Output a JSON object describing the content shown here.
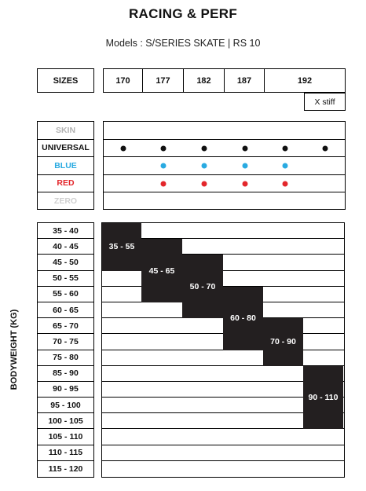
{
  "title": "RACING & PERF",
  "subtitle": "Models : S/SERIES SKATE  |  RS 10",
  "sizes": {
    "label": "SIZES",
    "values": [
      "170",
      "177",
      "182",
      "187",
      "192"
    ],
    "note": "X stiff"
  },
  "models": {
    "rows": [
      {
        "label": "SKIN",
        "color": "#b3b3b3",
        "dots": [
          false,
          false,
          false,
          false,
          false,
          false
        ]
      },
      {
        "label": "UNIVERSAL",
        "color": "#111111",
        "dots": [
          true,
          true,
          true,
          true,
          true,
          true
        ]
      },
      {
        "label": "BLUE",
        "color": "#29aae1",
        "dots": [
          false,
          true,
          true,
          true,
          true,
          false
        ]
      },
      {
        "label": "RED",
        "color": "#e3262b",
        "dots": [
          false,
          true,
          true,
          true,
          true,
          false
        ]
      },
      {
        "label": "ZERO",
        "color": "#d0d0d0",
        "dots": [
          false,
          false,
          false,
          false,
          false,
          false
        ]
      }
    ]
  },
  "bodyweight": {
    "axis_label": "BODYWEIGHT (KG)",
    "rows": [
      "35 - 40",
      "40 - 45",
      "45 - 50",
      "50 - 55",
      "55 - 60",
      "60 - 65",
      "65 - 70",
      "70 - 75",
      "75 - 80",
      "85 - 90",
      "90 - 95",
      "95 - 100",
      "100 - 105",
      "105 - 110",
      "110 - 115",
      "115 - 120"
    ],
    "blocks": [
      {
        "label": "35 - 55",
        "col": 0,
        "start_row": 0,
        "end_row": 2
      },
      {
        "label": "45 - 65",
        "col": 1,
        "start_row": 1,
        "end_row": 4
      },
      {
        "label": "50 - 70",
        "col": 2,
        "start_row": 2,
        "end_row": 5
      },
      {
        "label": "60 - 80",
        "col": 3,
        "start_row": 4,
        "end_row": 7
      },
      {
        "label": "70 - 90",
        "col": 4,
        "start_row": 6,
        "end_row": 8
      },
      {
        "label": "90 - 110",
        "col": 5,
        "start_row": 9,
        "end_row": 12
      }
    ]
  }
}
